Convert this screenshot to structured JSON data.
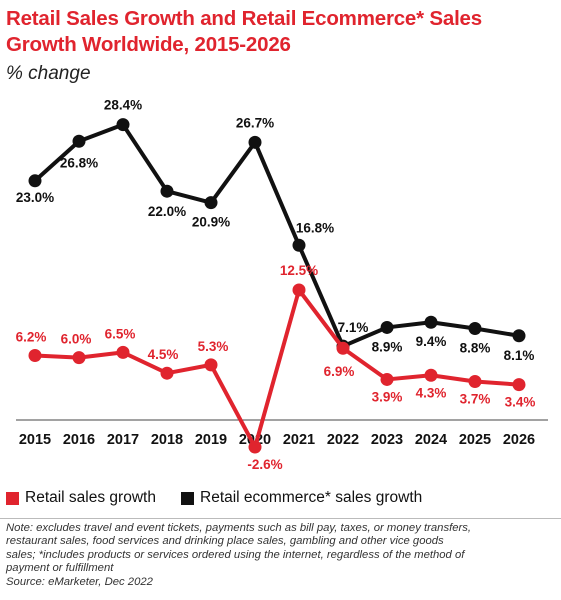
{
  "title_line1": "Retail Sales Growth and Retail Ecommerce* Sales",
  "title_line2": "Growth Worldwide, 2015-2026",
  "subtitle": "% change",
  "colors": {
    "brand_red": "#e0242e",
    "black": "#111111"
  },
  "chart_data": {
    "type": "line",
    "x": [
      "2015",
      "2016",
      "2017",
      "2018",
      "2019",
      "2020",
      "2021",
      "2022",
      "2023",
      "2024",
      "2025",
      "2026"
    ],
    "series": [
      {
        "name": "Retail ecommerce* sales growth",
        "color": "#111111",
        "values": [
          23.0,
          26.8,
          28.4,
          22.0,
          20.9,
          26.7,
          16.8,
          7.1,
          8.9,
          9.4,
          8.8,
          8.1
        ],
        "labels": [
          "23.0%",
          "26.8%",
          "28.4%",
          "22.0%",
          "20.9%",
          "26.7%",
          "16.8%",
          "7.1%",
          "8.9%",
          "9.4%",
          "8.8%",
          "8.1%"
        ]
      },
      {
        "name": "Retail sales growth",
        "color": "#e0242e",
        "values": [
          6.2,
          6.0,
          6.5,
          4.5,
          5.3,
          -2.6,
          12.5,
          6.9,
          3.9,
          4.3,
          3.7,
          3.4
        ],
        "labels": [
          "6.2%",
          "6.0%",
          "6.5%",
          "4.5%",
          "5.3%",
          "-2.6%",
          "12.5%",
          "6.9%",
          "3.9%",
          "4.3%",
          "3.7%",
          "3.4%"
        ]
      }
    ],
    "ylim": [
      -3,
      30
    ],
    "grid": false,
    "legend_position": "bottom-left"
  },
  "legend": {
    "items": [
      {
        "label": "Retail sales growth",
        "color": "#e0242e"
      },
      {
        "label": "Retail ecommerce* sales growth",
        "color": "#111111"
      }
    ]
  },
  "notes": {
    "lines": [
      "Note: excludes travel and event tickets, payments such as bill pay, taxes, or money transfers,",
      "restaurant sales, food services and drinking place sales, gambling and other vice goods",
      "sales; *includes products or services ordered using the internet, regardless of the method of",
      "payment or fulfillment",
      "Source: eMarketer, Dec 2022"
    ]
  }
}
